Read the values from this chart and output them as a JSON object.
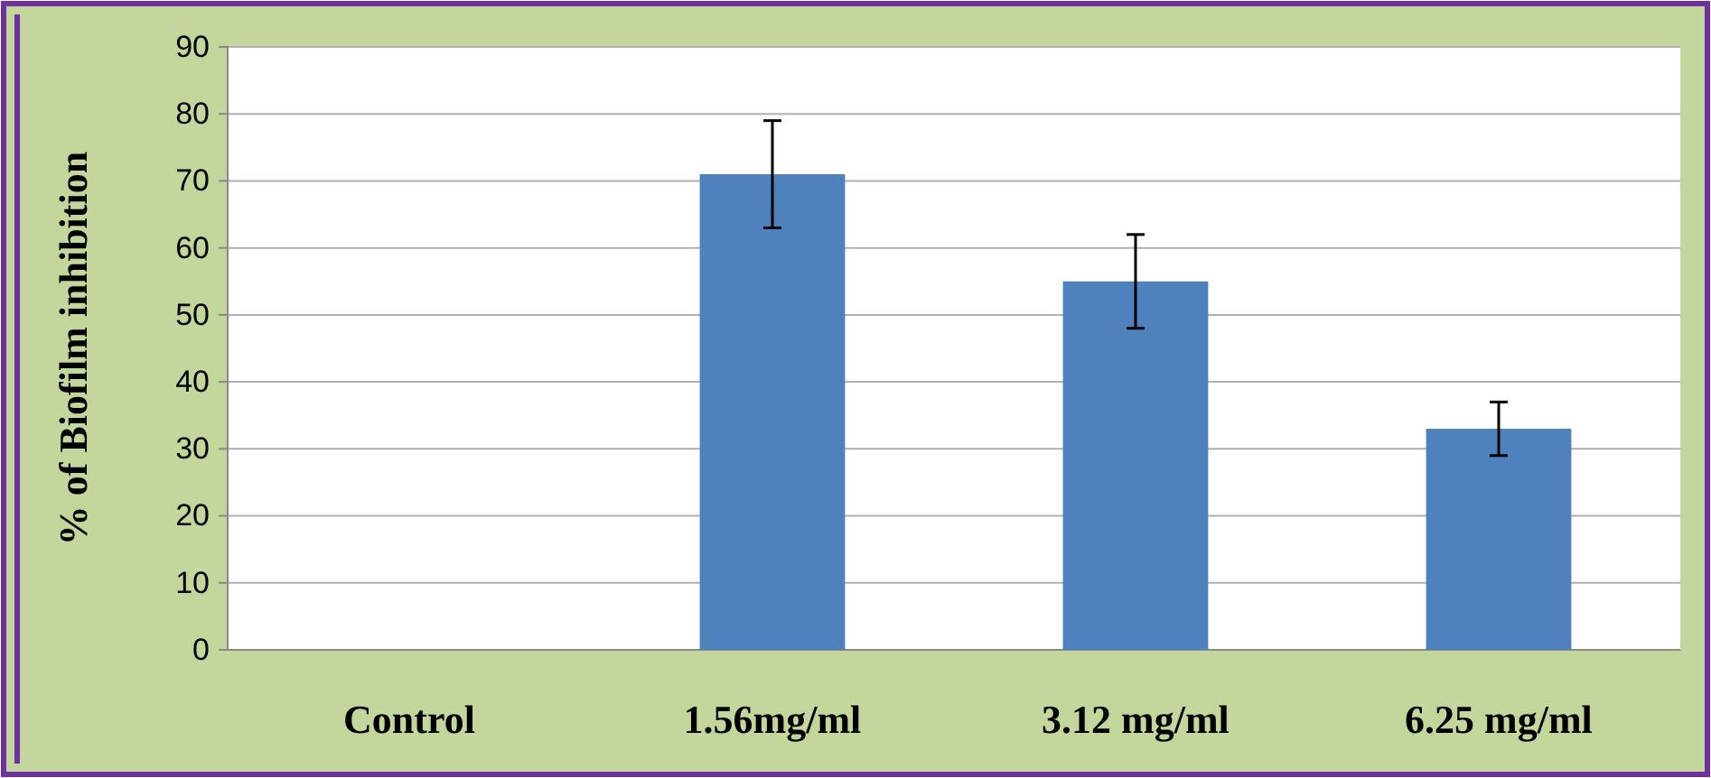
{
  "chart_data": {
    "type": "bar",
    "ylabel": "% of Biofilm inhibition",
    "categories": [
      "Control",
      "1.56mg/ml",
      "3.12 mg/ml",
      "6.25 mg/ml"
    ],
    "values": [
      0,
      71,
      55,
      33
    ],
    "errors": [
      null,
      8,
      7,
      4
    ],
    "color": "#4f81bd",
    "ylim": [
      0,
      90
    ],
    "yticks": [
      0,
      10,
      20,
      30,
      40,
      50,
      60,
      70,
      80,
      90
    ],
    "grid": "y"
  }
}
